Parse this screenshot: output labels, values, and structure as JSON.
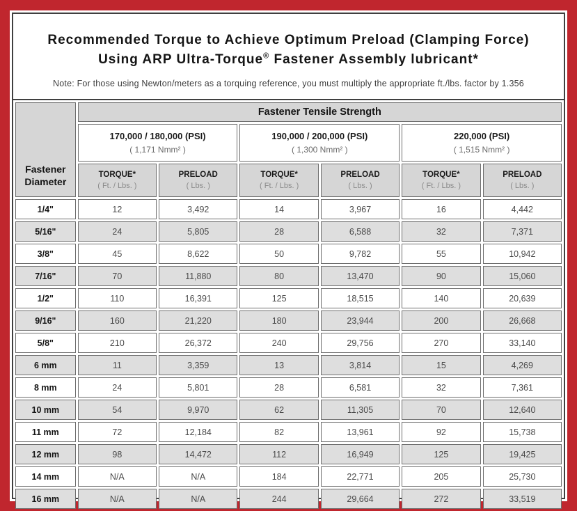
{
  "title": {
    "line1": "Recommended Torque to Achieve Optimum Preload (Clamping Force)",
    "line2_prefix": "Using ARP Ultra-Torque",
    "line2_reg": "®",
    "line2_suffix": " Fastener Assembly lubricant*",
    "note": "Note: For those using Newton/meters as a torquing reference, you must multiply the appropriate ft./lbs. factor by 1.356"
  },
  "table": {
    "corner": {
      "line1": "Fastener",
      "line2": "Diameter"
    },
    "top_header": "Fastener Tensile Strength",
    "groups": [
      {
        "psi": "170,000 / 180,000 (PSI)",
        "nmm": "( 1,171 Nmm² )"
      },
      {
        "psi": "190,000 / 200,000 (PSI)",
        "nmm": "( 1,300 Nmm² )"
      },
      {
        "psi": "220,000 (PSI)",
        "nmm": "( 1,515 Nmm² )"
      }
    ],
    "col_headers": [
      {
        "label": "TORQUE*",
        "sub": "( Ft. / Lbs. )"
      },
      {
        "label": "PRELOAD",
        "sub": "( Lbs. )"
      },
      {
        "label": "TORQUE*",
        "sub": "( Ft. / Lbs. )"
      },
      {
        "label": "PRELOAD",
        "sub": "( Lbs. )"
      },
      {
        "label": "TORQUE*",
        "sub": "( Ft. / Lbs. )"
      },
      {
        "label": "PRELOAD",
        "sub": "( Lbs. )"
      }
    ],
    "rows": [
      {
        "diameter": "1/4\"",
        "values": [
          "12",
          "3,492",
          "14",
          "3,967",
          "16",
          "4,442"
        ]
      },
      {
        "diameter": "5/16\"",
        "values": [
          "24",
          "5,805",
          "28",
          "6,588",
          "32",
          "7,371"
        ]
      },
      {
        "diameter": "3/8\"",
        "values": [
          "45",
          "8,622",
          "50",
          "9,782",
          "55",
          "10,942"
        ]
      },
      {
        "diameter": "7/16\"",
        "values": [
          "70",
          "11,880",
          "80",
          "13,470",
          "90",
          "15,060"
        ]
      },
      {
        "diameter": "1/2\"",
        "values": [
          "110",
          "16,391",
          "125",
          "18,515",
          "140",
          "20,639"
        ]
      },
      {
        "diameter": "9/16\"",
        "values": [
          "160",
          "21,220",
          "180",
          "23,944",
          "200",
          "26,668"
        ]
      },
      {
        "diameter": "5/8\"",
        "values": [
          "210",
          "26,372",
          "240",
          "29,756",
          "270",
          "33,140"
        ]
      },
      {
        "diameter": "6 mm",
        "values": [
          "11",
          "3,359",
          "13",
          "3,814",
          "15",
          "4,269"
        ]
      },
      {
        "diameter": "8 mm",
        "values": [
          "24",
          "5,801",
          "28",
          "6,581",
          "32",
          "7,361"
        ]
      },
      {
        "diameter": "10 mm",
        "values": [
          "54",
          "9,970",
          "62",
          "11,305",
          "70",
          "12,640"
        ]
      },
      {
        "diameter": "11 mm",
        "values": [
          "72",
          "12,184",
          "82",
          "13,961",
          "92",
          "15,738"
        ]
      },
      {
        "diameter": "12 mm",
        "values": [
          "98",
          "14,472",
          "112",
          "16,949",
          "125",
          "19,425"
        ]
      },
      {
        "diameter": "14 mm",
        "values": [
          "N/A",
          "N/A",
          "184",
          "22,771",
          "205",
          "25,730"
        ]
      },
      {
        "diameter": "16 mm",
        "values": [
          "N/A",
          "N/A",
          "244",
          "29,664",
          "272",
          "33,519"
        ]
      }
    ]
  },
  "colors": {
    "frame_red": "#c0262e",
    "sheet_border": "#3f3f3f",
    "header_gray": "#d6d6d6",
    "alt_row_gray": "#dedede",
    "cell_border": "#6e6e6e"
  }
}
